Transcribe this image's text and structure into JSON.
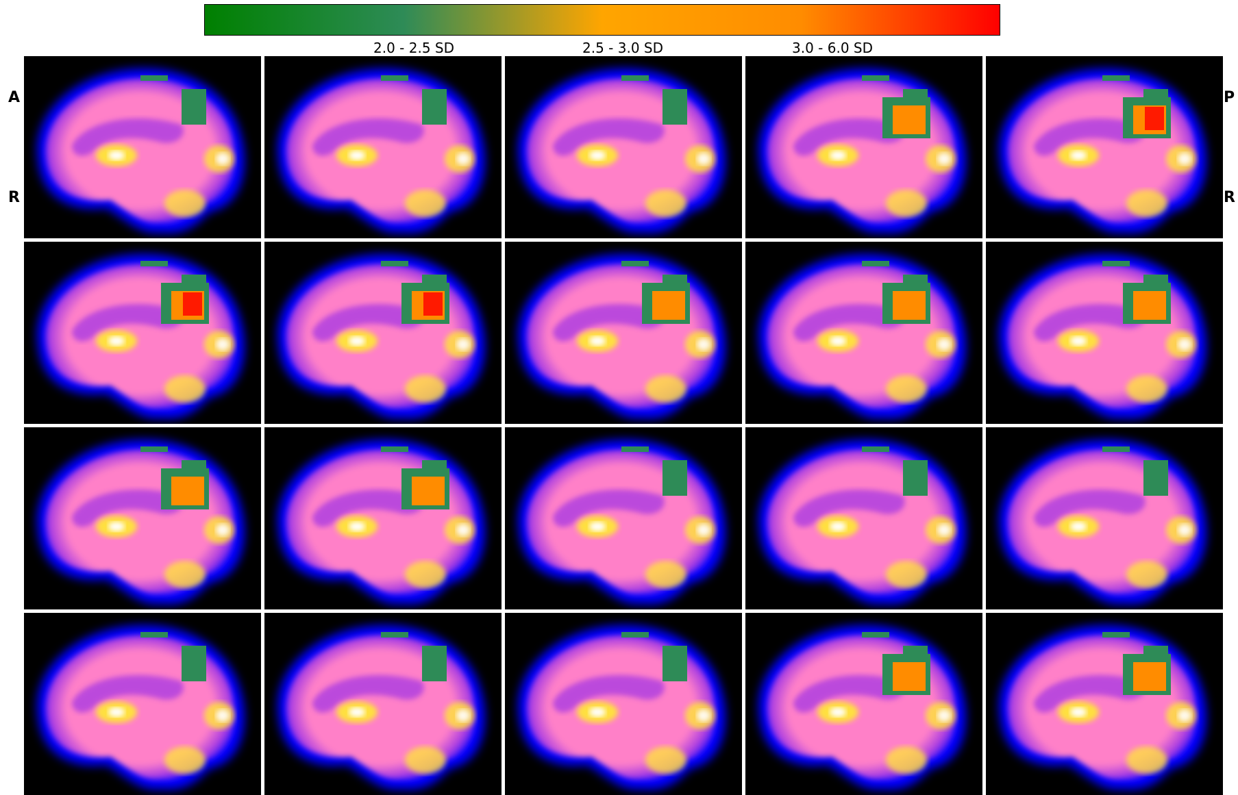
{
  "colorbar": {
    "gradient_stops": [
      "#008000",
      "#2e8b57",
      "#ffa500",
      "#ff8c00",
      "#ff0000"
    ],
    "labels": [
      "2.0 - 2.5 SD",
      "2.5 - 3.0 SD",
      "3.0 - 6.0 SD"
    ]
  },
  "orientation": {
    "left_top": "A",
    "left_bottom": "R",
    "right_top": "P",
    "right_bottom": "R"
  },
  "colors": {
    "background": "#000000",
    "brain_edge": "#0000ff",
    "brain_mid": "#b040e0",
    "brain_cortex": "#ff80c8",
    "brain_hot": "#ffe040",
    "brain_max": "#ffffff",
    "overlay_low": "#2e8b57",
    "overlay_mid": "#ff8c00",
    "overlay_high": "#ff1a00"
  },
  "slices": [
    {
      "row": 1,
      "col": 1,
      "lesion": "low"
    },
    {
      "row": 1,
      "col": 2,
      "lesion": "low"
    },
    {
      "row": 1,
      "col": 3,
      "lesion": "low"
    },
    {
      "row": 1,
      "col": 4,
      "lesion": "mid"
    },
    {
      "row": 1,
      "col": 5,
      "lesion": "high"
    },
    {
      "row": 2,
      "col": 1,
      "lesion": "high"
    },
    {
      "row": 2,
      "col": 2,
      "lesion": "high"
    },
    {
      "row": 2,
      "col": 3,
      "lesion": "mid"
    },
    {
      "row": 2,
      "col": 4,
      "lesion": "mid"
    },
    {
      "row": 2,
      "col": 5,
      "lesion": "mid"
    },
    {
      "row": 3,
      "col": 1,
      "lesion": "mid"
    },
    {
      "row": 3,
      "col": 2,
      "lesion": "mid"
    },
    {
      "row": 3,
      "col": 3,
      "lesion": "low"
    },
    {
      "row": 3,
      "col": 4,
      "lesion": "low"
    },
    {
      "row": 3,
      "col": 5,
      "lesion": "low"
    },
    {
      "row": 4,
      "col": 1,
      "lesion": "low"
    },
    {
      "row": 4,
      "col": 2,
      "lesion": "low"
    },
    {
      "row": 4,
      "col": 3,
      "lesion": "low"
    },
    {
      "row": 4,
      "col": 4,
      "lesion": "mid"
    },
    {
      "row": 4,
      "col": 5,
      "lesion": "mid"
    }
  ]
}
